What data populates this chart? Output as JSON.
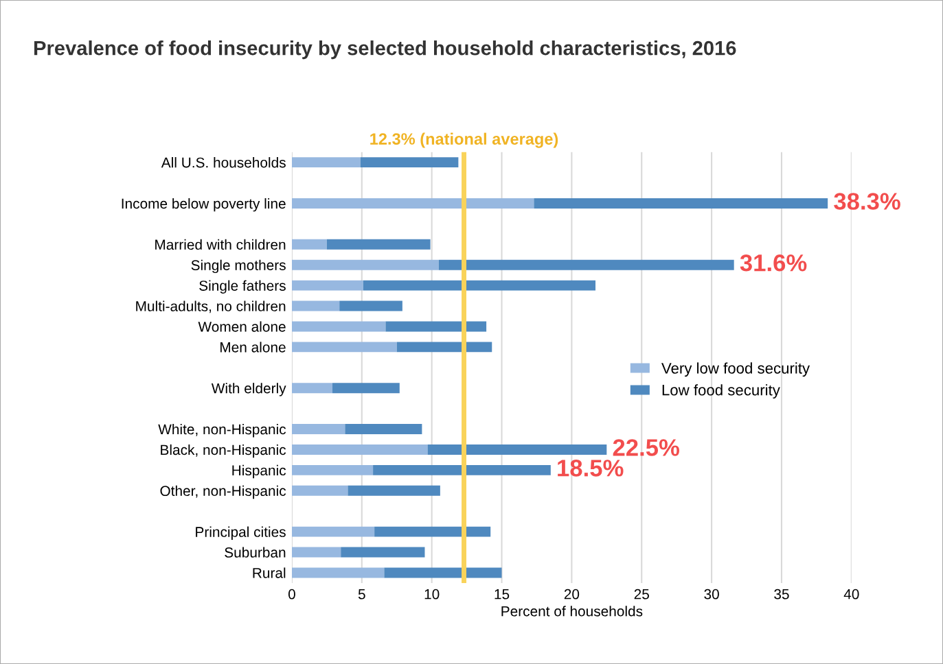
{
  "chart_data": {
    "type": "bar",
    "orientation": "horizontal",
    "stacked": true,
    "title": "Prevalence of food insecurity by selected household characteristics, 2016",
    "xlabel": "Percent of households",
    "categories": [
      "All U.S. households",
      null,
      "Income below poverty line",
      null,
      "Married with children",
      "Single mothers",
      "Single fathers",
      "Multi-adults, no children",
      "Women alone",
      "Men alone",
      null,
      "With elderly",
      null,
      "White, non-Hispanic",
      "Black, non-Hispanic",
      "Hispanic",
      "Other, non-Hispanic",
      null,
      "Principal cities",
      "Suburban",
      "Rural"
    ],
    "series": [
      {
        "name": "Very low food security",
        "color": "#97b8e0",
        "values": [
          4.9,
          null,
          17.3,
          null,
          2.5,
          10.5,
          5.1,
          3.4,
          6.7,
          7.5,
          null,
          2.9,
          null,
          3.8,
          9.7,
          5.8,
          4.0,
          null,
          5.9,
          3.5,
          6.6
        ]
      },
      {
        "name": "Low food security",
        "color": "#4f89bf",
        "values": [
          7.0,
          null,
          21.0,
          null,
          7.4,
          21.1,
          16.6,
          4.5,
          7.2,
          6.8,
          null,
          4.8,
          null,
          5.5,
          12.8,
          12.7,
          6.6,
          null,
          8.3,
          6.0,
          8.4
        ]
      }
    ],
    "xlim": [
      0,
      40
    ],
    "xticks": [
      0,
      5,
      10,
      15,
      20,
      25,
      30,
      35,
      40
    ],
    "grid": "x",
    "legend": "right",
    "ref_lines": [
      {
        "axis": "x",
        "value": 12.3,
        "label": "12.3% (national average)",
        "color": "#f9d35a"
      }
    ],
    "annotations": [
      {
        "text": "38.3%",
        "x": 38.3,
        "y": "Income below poverty line"
      },
      {
        "text": "31.6%",
        "x": 31.6,
        "y": "Single mothers"
      },
      {
        "text": "22.5%",
        "x": 22.5,
        "y": "Black, non-Hispanic"
      },
      {
        "text": "18.5%",
        "x": 18.5,
        "y": "Hispanic"
      }
    ]
  }
}
